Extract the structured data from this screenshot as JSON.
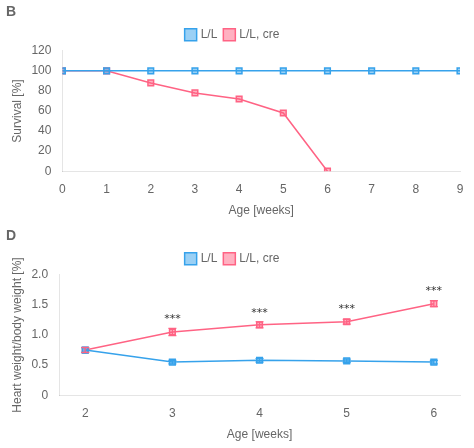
{
  "chart_data": [
    {
      "type": "line",
      "title": "B",
      "xlabel": "Age [weeks]",
      "ylabel": "Survival [%]",
      "xlim": [
        0,
        9
      ],
      "xticks": [
        0,
        1,
        2,
        3,
        4,
        5,
        6,
        7,
        8,
        9
      ],
      "ylim": [
        0,
        120
      ],
      "yticks": [
        0,
        20,
        40,
        60,
        80,
        100,
        120
      ],
      "grid": false,
      "legend": "top",
      "series": [
        {
          "name": "L/L",
          "marker": "square",
          "x": [
            0,
            1,
            2,
            3,
            4,
            5,
            6,
            7,
            8,
            9
          ],
          "values": [
            100,
            100,
            100,
            100,
            100,
            100,
            100,
            100,
            100,
            100
          ]
        },
        {
          "name": "L/L, cre",
          "marker": "square",
          "x": [
            0,
            1,
            2,
            3,
            4,
            5,
            6
          ],
          "values": [
            100,
            100,
            88,
            78,
            72,
            58,
            0
          ]
        }
      ]
    },
    {
      "type": "line",
      "title": "D",
      "xlabel": "Age [weeks]",
      "ylabel": "Heart weight/body weight [%]",
      "xlim": [
        1.7,
        6.3
      ],
      "xticks": [
        2,
        3,
        4,
        5,
        6
      ],
      "ylim": [
        0,
        2
      ],
      "yticks": [
        0,
        0.5,
        {
          "value": 1.0,
          "label": "1.0"
        },
        1.5,
        {
          "value": 2.0,
          "label": "2.0"
        }
      ],
      "grid": false,
      "legend": "top",
      "series": [
        {
          "name": "L/L",
          "marker": "square",
          "x": [
            2,
            3,
            4,
            5,
            6
          ],
          "values": [
            0.75,
            0.55,
            0.58,
            0.57,
            0.55
          ],
          "errors": [
            0.04,
            0.03,
            0.03,
            0.03,
            0.03
          ]
        },
        {
          "name": "L/L, cre",
          "marker": "square",
          "x": [
            2,
            3,
            4,
            5,
            6
          ],
          "values": [
            0.75,
            1.05,
            1.17,
            1.22,
            1.52
          ],
          "errors": [
            0.04,
            0.06,
            0.05,
            0.04,
            0.05
          ]
        }
      ],
      "annotations": [
        {
          "x": 3,
          "y": 1.17,
          "text": "***"
        },
        {
          "x": 4,
          "y": 1.28,
          "text": "***"
        },
        {
          "x": 5,
          "y": 1.33,
          "text": "***"
        },
        {
          "x": 6,
          "y": 1.64,
          "text": "***"
        }
      ]
    }
  ]
}
